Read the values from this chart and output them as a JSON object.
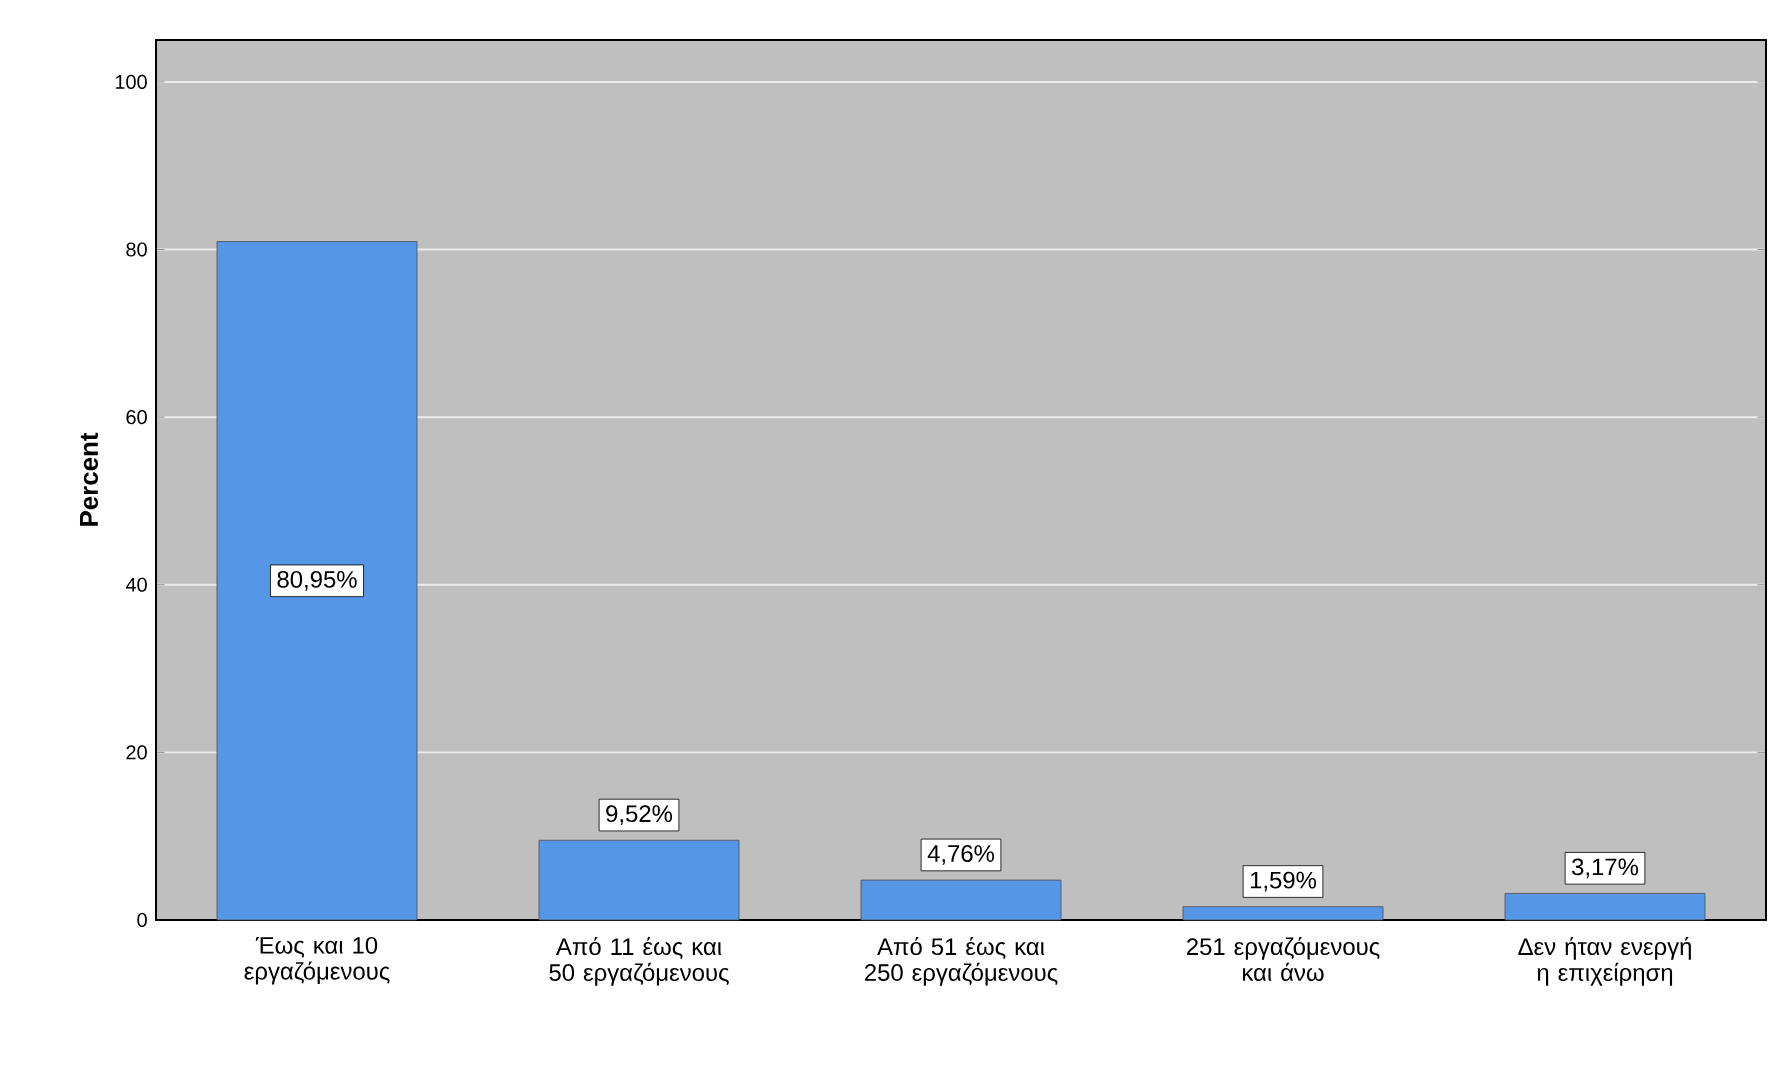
{
  "chart_data": {
    "type": "bar",
    "ylabel": "Percent",
    "categories": [
      "Έως και 10 εργαζόμενους",
      "Από 11 έως και 50 εργαζόμενους",
      "Από 51 έως και 250 εργαζόμενους",
      "251 εργαζόμενους και άνω",
      "Δεν ήταν ενεργή η επιχείρηση"
    ],
    "values": [
      80.95,
      9.52,
      4.76,
      1.59,
      3.17
    ],
    "value_labels": [
      "80,95%",
      "9,52%",
      "4,76%",
      "1,59%",
      "3,17%"
    ],
    "color": "#5596e6",
    "ylim": [
      0,
      105
    ],
    "yticks": [
      0,
      20,
      40,
      60,
      80,
      100
    ],
    "grid": "y"
  }
}
